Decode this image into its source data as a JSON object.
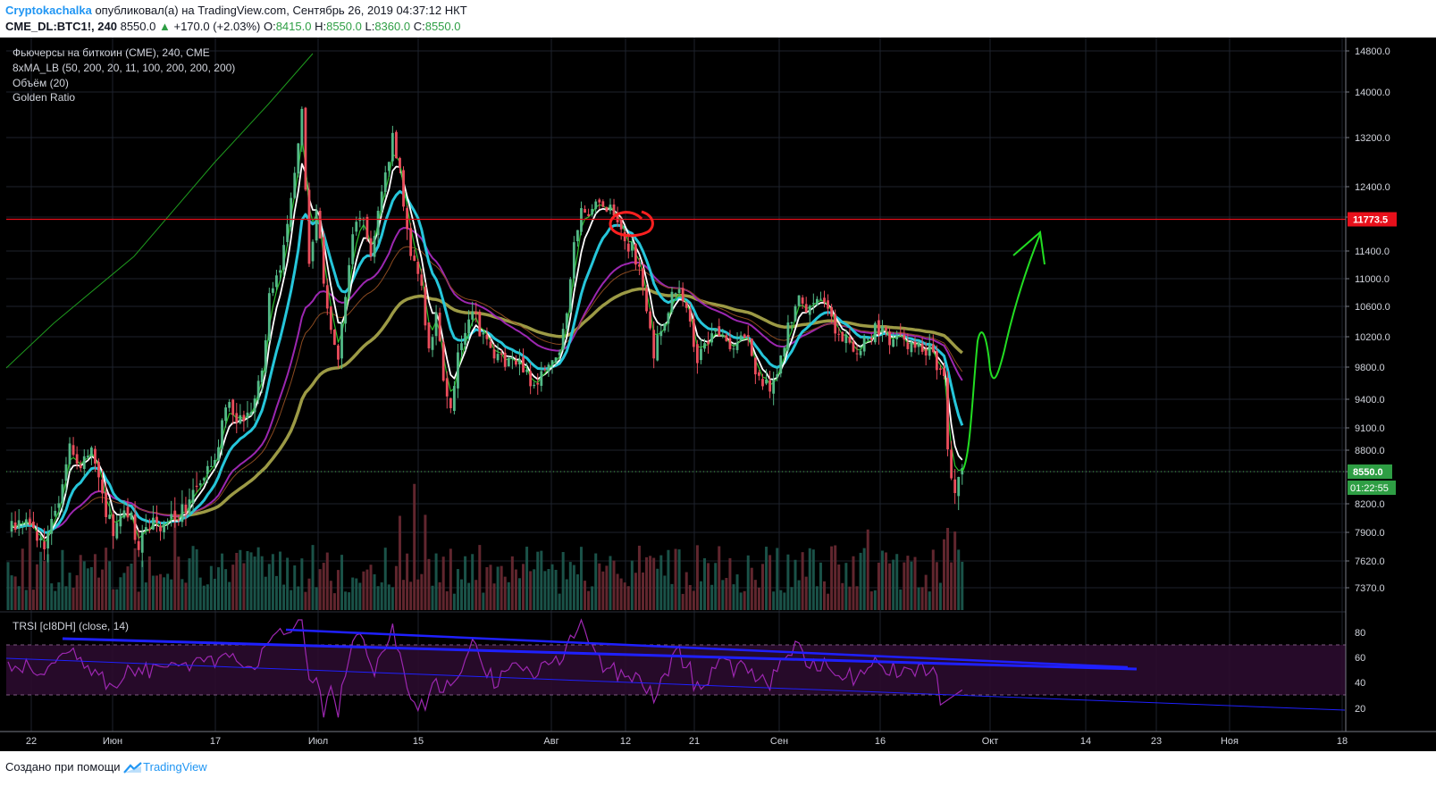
{
  "header": {
    "author": "Cryptokachalka",
    "published_text": "опубликовал(а) на TradingView.com, Сентябрь 26, 2019 04:37:12 НКТ",
    "symbol": "CME_DL:BTC1!, 240",
    "last": "8550.0",
    "change": "+170.0 (+2.03%)",
    "ohlc": [
      {
        "label": "O:",
        "value": "8415.0"
      },
      {
        "label": "H:",
        "value": "8550.0"
      },
      {
        "label": "L:",
        "value": "8360.0"
      },
      {
        "label": "C:",
        "value": "8550.0"
      }
    ]
  },
  "legend": {
    "title": "Фьючерсы на биткоин (CME), 240, CME",
    "ma": "8xMA_LB (50, 200, 20, 11, 100, 200, 200, 200)",
    "volume": "Объём (20)",
    "golden": "Golden Ratio",
    "trsi": "TRSI [cI8DH] (close, 14)"
  },
  "footer": {
    "text": "Создано при помощи",
    "brand": "TradingView"
  },
  "colors": {
    "background": "#000000",
    "up_candle": "#53b987",
    "down_candle": "#eb4d5c",
    "ma_white": "#ffffff",
    "ma_cyan": "#26c6da",
    "ma_purple": "#9c27b0",
    "ma_olive": "#9c9a45",
    "ma_green": "#1e9a1e",
    "resistance": "#e8101b",
    "trend_blue": "#1f20ff",
    "forecast": "#22dd22",
    "circle": "#ff2020",
    "rsi": "#9c27b0"
  },
  "chart_data": {
    "type": "candlestick",
    "price_scale": {
      "ticks": [
        "14800.0",
        "14000.0",
        "13200.0",
        "12400.0",
        "11800.0",
        "11400.0",
        "11000.0",
        "10600.0",
        "10200.0",
        "9800.0",
        "9400.0",
        "9100.0",
        "8800.0",
        "8500.0",
        "8200.0",
        "7900.0",
        "7620.0",
        "7370.0"
      ],
      "range": [
        7100,
        15000
      ]
    },
    "last_price_label": "8550.0",
    "countdown_label": "01:22:55",
    "resistance_label": "11773.5",
    "resistance_level": 11773.5,
    "x_labels": [
      "22",
      "Июн",
      "17",
      "Июл",
      "15",
      "Авг",
      "12",
      "21",
      "Сен",
      "16",
      "Окт",
      "14",
      "23",
      "Ноя",
      "18"
    ],
    "rsi_panel": {
      "ticks": [
        "80",
        "60",
        "40",
        "20"
      ],
      "range": [
        0,
        100
      ],
      "bands": [
        30,
        70
      ]
    },
    "price_keypoints": [
      {
        "t": 0,
        "p": 7900
      },
      {
        "t": 5,
        "p": 8050
      },
      {
        "t": 10,
        "p": 7800
      },
      {
        "t": 14,
        "p": 8150
      },
      {
        "t": 17,
        "p": 8900
      },
      {
        "t": 19,
        "p": 8600
      },
      {
        "t": 23,
        "p": 8750
      },
      {
        "t": 26,
        "p": 8300
      },
      {
        "t": 29,
        "p": 7900
      },
      {
        "t": 33,
        "p": 8150
      },
      {
        "t": 36,
        "p": 7750
      },
      {
        "t": 40,
        "p": 8000
      },
      {
        "t": 44,
        "p": 7950
      },
      {
        "t": 48,
        "p": 8150
      },
      {
        "t": 51,
        "p": 8250
      },
      {
        "t": 54,
        "p": 8500
      },
      {
        "t": 57,
        "p": 8700
      },
      {
        "t": 60,
        "p": 9300
      },
      {
        "t": 64,
        "p": 9200
      },
      {
        "t": 68,
        "p": 9300
      },
      {
        "t": 70,
        "p": 9800
      },
      {
        "t": 72,
        "p": 10700
      },
      {
        "t": 76,
        "p": 11400
      },
      {
        "t": 79,
        "p": 12600
      },
      {
        "t": 81,
        "p": 13700
      },
      {
        "t": 83,
        "p": 11200
      },
      {
        "t": 85,
        "p": 12000
      },
      {
        "t": 87,
        "p": 11000
      },
      {
        "t": 89,
        "p": 10200
      },
      {
        "t": 91,
        "p": 9900
      },
      {
        "t": 93,
        "p": 10700
      },
      {
        "t": 95,
        "p": 11600
      },
      {
        "t": 98,
        "p": 11800
      },
      {
        "t": 100,
        "p": 11300
      },
      {
        "t": 103,
        "p": 12200
      },
      {
        "t": 106,
        "p": 13200
      },
      {
        "t": 108,
        "p": 12600
      },
      {
        "t": 110,
        "p": 11600
      },
      {
        "t": 112,
        "p": 11200
      },
      {
        "t": 114,
        "p": 10800
      },
      {
        "t": 116,
        "p": 10000
      },
      {
        "t": 118,
        "p": 10500
      },
      {
        "t": 120,
        "p": 9600
      },
      {
        "t": 122,
        "p": 9400
      },
      {
        "t": 125,
        "p": 10200
      },
      {
        "t": 128,
        "p": 10500
      },
      {
        "t": 131,
        "p": 10200
      },
      {
        "t": 134,
        "p": 10000
      },
      {
        "t": 137,
        "p": 9800
      },
      {
        "t": 140,
        "p": 9900
      },
      {
        "t": 143,
        "p": 9700
      },
      {
        "t": 146,
        "p": 9600
      },
      {
        "t": 149,
        "p": 9850
      },
      {
        "t": 152,
        "p": 10100
      },
      {
        "t": 154,
        "p": 10400
      },
      {
        "t": 156,
        "p": 11500
      },
      {
        "t": 158,
        "p": 12000
      },
      {
        "t": 160,
        "p": 11800
      },
      {
        "t": 162,
        "p": 12100
      },
      {
        "t": 164,
        "p": 11900
      },
      {
        "t": 166,
        "p": 11950
      },
      {
        "t": 168,
        "p": 11800
      },
      {
        "t": 170,
        "p": 11600
      },
      {
        "t": 172,
        "p": 11400
      },
      {
        "t": 174,
        "p": 11150
      },
      {
        "t": 176,
        "p": 10500
      },
      {
        "t": 178,
        "p": 10000
      },
      {
        "t": 180,
        "p": 10300
      },
      {
        "t": 182,
        "p": 10600
      },
      {
        "t": 184,
        "p": 10900
      },
      {
        "t": 186,
        "p": 10700
      },
      {
        "t": 188,
        "p": 10300
      },
      {
        "t": 190,
        "p": 9900
      },
      {
        "t": 192,
        "p": 10100
      },
      {
        "t": 194,
        "p": 10300
      },
      {
        "t": 196,
        "p": 10200
      },
      {
        "t": 198,
        "p": 10100
      },
      {
        "t": 200,
        "p": 10150
      },
      {
        "t": 202,
        "p": 10300
      },
      {
        "t": 204,
        "p": 10100
      },
      {
        "t": 206,
        "p": 9800
      },
      {
        "t": 208,
        "p": 9650
      },
      {
        "t": 210,
        "p": 9600
      },
      {
        "t": 212,
        "p": 9800
      },
      {
        "t": 214,
        "p": 10100
      },
      {
        "t": 216,
        "p": 10500
      },
      {
        "t": 218,
        "p": 10700
      },
      {
        "t": 220,
        "p": 10600
      },
      {
        "t": 222,
        "p": 10750
      },
      {
        "t": 224,
        "p": 10800
      },
      {
        "t": 226,
        "p": 10500
      },
      {
        "t": 228,
        "p": 10300
      },
      {
        "t": 230,
        "p": 10200
      },
      {
        "t": 232,
        "p": 10100
      },
      {
        "t": 234,
        "p": 10000
      },
      {
        "t": 236,
        "p": 10100
      },
      {
        "t": 238,
        "p": 10250
      },
      {
        "t": 240,
        "p": 10300
      },
      {
        "t": 242,
        "p": 10200
      },
      {
        "t": 244,
        "p": 10150
      },
      {
        "t": 246,
        "p": 10200
      },
      {
        "t": 248,
        "p": 10100
      },
      {
        "t": 250,
        "p": 10150
      },
      {
        "t": 252,
        "p": 10050
      },
      {
        "t": 254,
        "p": 10000
      },
      {
        "t": 256,
        "p": 9800
      },
      {
        "t": 258,
        "p": 9600
      },
      {
        "t": 259,
        "p": 8900
      },
      {
        "t": 260,
        "p": 8400
      },
      {
        "t": 261,
        "p": 8300
      },
      {
        "t": 262,
        "p": 8450
      },
      {
        "t": 263,
        "p": 8550
      }
    ]
  }
}
